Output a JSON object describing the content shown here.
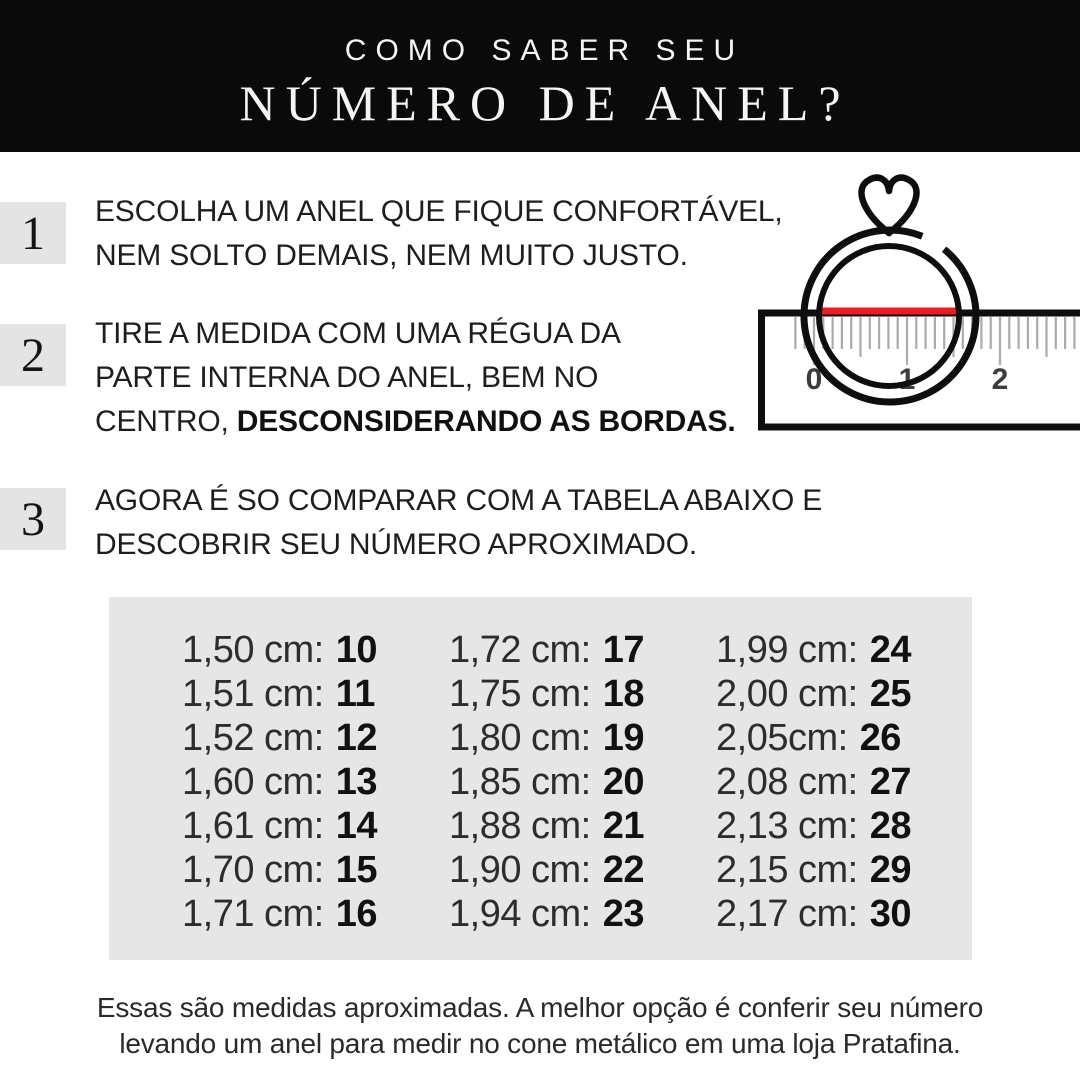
{
  "header": {
    "subtitle": "COMO SABER SEU",
    "title": "NÚMERO DE ANEL?"
  },
  "steps": [
    {
      "number": "1",
      "line1": "ESCOLHA UM ANEL QUE FIQUE CONFORTÁVEL,",
      "line2": "NEM SOLTO DEMAIS, NEM MUITO JUSTO."
    },
    {
      "number": "2",
      "line1": "TIRE A MEDIDA COM UMA RÉGUA DA",
      "line2": "PARTE INTERNA DO ANEL, BEM NO",
      "line3_regular": "CENTRO, ",
      "line3_bold": "DESCONSIDERANDO AS BORDAS."
    },
    {
      "number": "3",
      "line1": "AGORA É SO COMPARAR COM A TABELA ABAIXO E",
      "line2": "DESCOBRIR SEU NÚMERO APROXIMADO."
    }
  ],
  "illustration": {
    "icon": "heart-ring-icon",
    "ruler_labels": [
      "0",
      "1",
      "2"
    ],
    "red_line_color": "#ee1b22",
    "ink_color": "#0e0e0e",
    "tick_color": "#ababab"
  },
  "size_table": {
    "columns": [
      {
        "rows": [
          {
            "cm": "1,50 cm:",
            "size": "10"
          },
          {
            "cm": "1,51 cm:",
            "size": "11"
          },
          {
            "cm": "1,52 cm:",
            "size": "12"
          },
          {
            "cm": "1,60 cm:",
            "size": "13"
          },
          {
            "cm": "1,61 cm:",
            "size": "14"
          },
          {
            "cm": "1,70 cm:",
            "size": "15"
          },
          {
            "cm": "1,71 cm:",
            "size": "16"
          }
        ]
      },
      {
        "rows": [
          {
            "cm": "1,72 cm:",
            "size": "17"
          },
          {
            "cm": "1,75 cm:",
            "size": "18"
          },
          {
            "cm": "1,80 cm:",
            "size": "19"
          },
          {
            "cm": "1,85 cm:",
            "size": "20"
          },
          {
            "cm": "1,88 cm:",
            "size": "21"
          },
          {
            "cm": "1,90 cm:",
            "size": "22"
          },
          {
            "cm": "1,94 cm:",
            "size": "23"
          }
        ]
      },
      {
        "rows": [
          {
            "cm": "1,99 cm:",
            "size": "24"
          },
          {
            "cm": "2,00 cm:",
            "size": "25"
          },
          {
            "cm": "2,05cm:",
            "size": "26"
          },
          {
            "cm": "2,08 cm:",
            "size": "27"
          },
          {
            "cm": "2,13 cm:",
            "size": "28"
          },
          {
            "cm": "2,15 cm:",
            "size": "29"
          },
          {
            "cm": "2,17 cm:",
            "size": "30"
          }
        ]
      }
    ]
  },
  "footer": {
    "line1": "Essas são medidas aproximadas. A melhor opção é conferir seu número",
    "line2": "levando um anel para medir no cone metálico em uma loja Pratafina."
  }
}
